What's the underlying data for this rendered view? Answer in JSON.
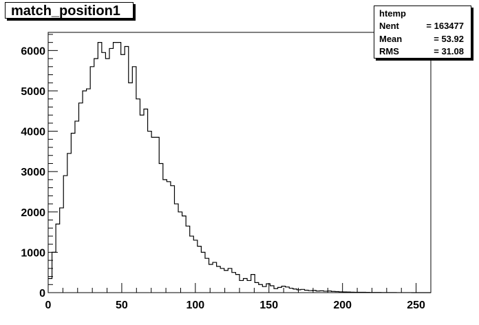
{
  "chart_data": {
    "type": "bar",
    "title": "match_position1",
    "xlabel": "",
    "ylabel": "",
    "xlim": [
      0,
      260
    ],
    "ylim": [
      0,
      6450
    ],
    "bin_width": 2.6,
    "x_ticks": [
      "0",
      "50",
      "100",
      "150",
      "200",
      "250"
    ],
    "y_ticks": [
      "0",
      "1000",
      "2000",
      "3000",
      "4000",
      "5000",
      "6000"
    ],
    "values": [
      350,
      1000,
      1700,
      2100,
      2900,
      3450,
      3950,
      4250,
      4700,
      5000,
      5050,
      5600,
      5800,
      6200,
      5950,
      5800,
      6050,
      6200,
      6200,
      5900,
      6100,
      5200,
      5600,
      4800,
      4400,
      4550,
      4000,
      3850,
      3850,
      3200,
      2800,
      2750,
      2650,
      2200,
      2000,
      1900,
      1650,
      1400,
      1300,
      1150,
      1000,
      850,
      700,
      750,
      650,
      600,
      550,
      600,
      500,
      450,
      300,
      350,
      300,
      450,
      250,
      200,
      150,
      220,
      170,
      100,
      130,
      160,
      140,
      110,
      90,
      70,
      80,
      60,
      50,
      55,
      40,
      45,
      35,
      40,
      30,
      25,
      20,
      18,
      15,
      12,
      10,
      8,
      10,
      6,
      5,
      5,
      4,
      3,
      3,
      2,
      2,
      1,
      1,
      1,
      1,
      0,
      0,
      0,
      0,
      0
    ],
    "grid": false,
    "legend": "none",
    "stats": {
      "name": "htemp",
      "rows": [
        {
          "label": "Nent",
          "value": "= 163477"
        },
        {
          "label": "Mean",
          "value": "=  53.92"
        },
        {
          "label": "RMS",
          "value": "=  31.08"
        }
      ]
    },
    "colors": {
      "frame": "#000000",
      "background": "#ffffff",
      "line": "#000000"
    }
  }
}
